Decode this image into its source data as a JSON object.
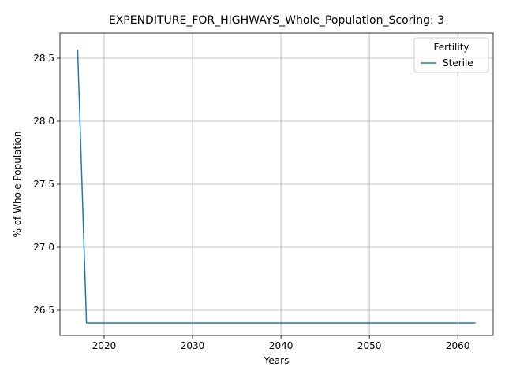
{
  "chart_data": {
    "type": "line",
    "title": "EXPENDITURE_FOR_HIGHWAYS_Whole_Population_Scoring: 3",
    "xlabel": "Years",
    "ylabel": "% of Whole Population",
    "xlim": [
      2015,
      2064
    ],
    "ylim": [
      26.3,
      28.7
    ],
    "xticks": [
      2020,
      2030,
      2040,
      2050,
      2060
    ],
    "yticks": [
      26.5,
      27.0,
      27.5,
      28.0,
      28.5
    ],
    "xtick_labels": [
      "2020",
      "2030",
      "2040",
      "2050",
      "2060"
    ],
    "ytick_labels": [
      "26.5",
      "27.0",
      "27.5",
      "28.0",
      "28.5"
    ],
    "grid": true,
    "legend": {
      "title": "Fertility",
      "position": "top-right"
    },
    "series": [
      {
        "name": "Sterile",
        "color": "#1f77b4",
        "x": [
          2017,
          2018,
          2019,
          2020,
          2025,
          2030,
          2035,
          2040,
          2045,
          2050,
          2055,
          2060,
          2062
        ],
        "y": [
          28.57,
          26.4,
          26.4,
          26.4,
          26.4,
          26.4,
          26.4,
          26.4,
          26.4,
          26.4,
          26.4,
          26.4,
          26.4
        ]
      }
    ]
  }
}
